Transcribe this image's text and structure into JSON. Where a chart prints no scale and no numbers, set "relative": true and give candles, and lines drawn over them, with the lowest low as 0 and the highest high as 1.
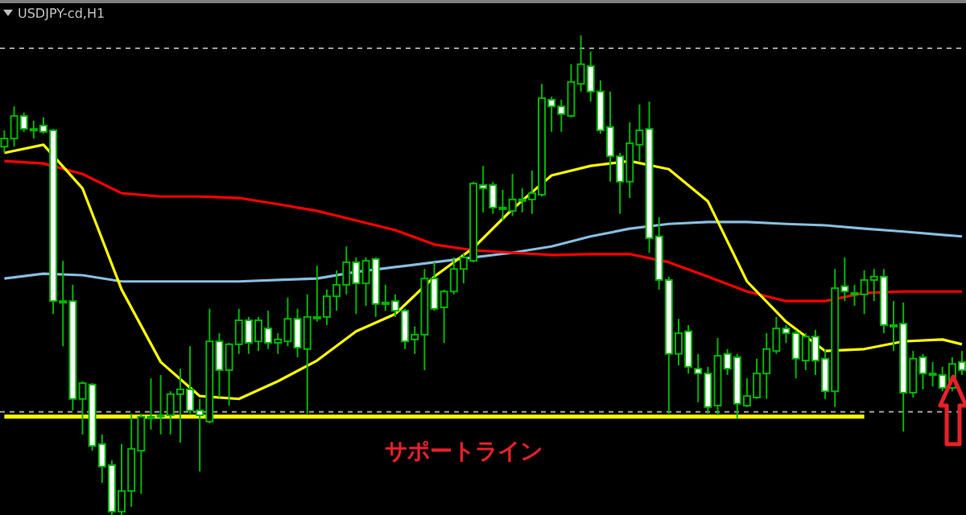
{
  "chart_data": {
    "type": "candlestick",
    "title": "USDJPY-cd,H1",
    "relative": true,
    "categories": [
      null,
      null,
      null,
      null,
      null,
      null,
      null,
      null,
      null,
      null,
      null,
      null,
      null,
      null,
      null,
      null,
      null,
      null,
      null,
      null,
      null,
      null,
      null,
      null,
      null,
      null,
      null,
      null,
      null,
      null,
      null,
      null,
      null,
      null,
      null,
      null,
      null,
      null,
      null,
      null,
      null,
      null,
      null,
      null,
      null,
      null,
      null,
      null,
      null,
      null,
      null,
      null,
      null,
      null,
      null,
      null,
      null,
      null,
      null,
      null,
      null,
      null,
      null,
      null,
      null,
      null,
      null,
      null,
      null,
      null,
      null,
      null,
      null,
      null,
      null,
      null,
      null,
      null,
      null,
      null,
      null,
      null,
      null,
      null,
      null,
      null,
      null,
      null,
      null,
      null,
      null,
      null,
      null,
      null,
      null,
      null,
      null,
      null,
      null
    ],
    "ohlc": [
      [
        0.768,
        0.802,
        0.755,
        0.785
      ],
      [
        0.785,
        0.852,
        0.768,
        0.832
      ],
      [
        0.832,
        0.839,
        0.799,
        0.805
      ],
      [
        0.805,
        0.822,
        0.785,
        0.805
      ],
      [
        0.812,
        0.829,
        0.795,
        0.799
      ],
      [
        0.802,
        0.805,
        0.419,
        0.446
      ],
      [
        0.446,
        0.53,
        0.352,
        0.446
      ],
      [
        0.446,
        0.48,
        0.218,
        0.242
      ],
      [
        0.242,
        0.279,
        0.168,
        0.275
      ],
      [
        0.272,
        0.275,
        0.134,
        0.144
      ],
      [
        0.148,
        0.168,
        0.067,
        0.101
      ],
      [
        0.104,
        0.114,
        0,
        0.007
      ],
      [
        0.007,
        0.148,
        0,
        0.05
      ],
      [
        0.05,
        0.211,
        0.017,
        0.138
      ],
      [
        0.134,
        0.211,
        0.044,
        0.205
      ],
      [
        0.205,
        0.285,
        0.178,
        0.205
      ],
      [
        0.208,
        0.292,
        0.168,
        0.208
      ],
      [
        0.208,
        0.258,
        0.168,
        0.252
      ],
      [
        0.252,
        0.305,
        0.151,
        0.262
      ],
      [
        0.262,
        0.352,
        0.211,
        0.218
      ],
      [
        0.218,
        0.242,
        0.091,
        0.208
      ],
      [
        0.195,
        0.43,
        0.191,
        0.362
      ],
      [
        0.362,
        0.379,
        0.245,
        0.302
      ],
      [
        0.302,
        0.359,
        0.228,
        0.356
      ],
      [
        0.356,
        0.43,
        0.336,
        0.406
      ],
      [
        0.406,
        0.413,
        0.336,
        0.359
      ],
      [
        0.362,
        0.413,
        0.342,
        0.406
      ],
      [
        0.389,
        0.426,
        0.346,
        0.359
      ],
      [
        0.359,
        0.379,
        0.336,
        0.366
      ],
      [
        0.362,
        0.453,
        0.352,
        0.409
      ],
      [
        0.409,
        0.43,
        0.329,
        0.349
      ],
      [
        0.346,
        0.46,
        0.211,
        0.413
      ],
      [
        0.413,
        0.52,
        0.403,
        0.413
      ],
      [
        0.413,
        0.47,
        0.396,
        0.456
      ],
      [
        0.456,
        0.51,
        0.426,
        0.48
      ],
      [
        0.48,
        0.56,
        0.46,
        0.527
      ],
      [
        0.527,
        0.537,
        0.419,
        0.483
      ],
      [
        0.483,
        0.537,
        0.436,
        0.53
      ],
      [
        0.534,
        0.537,
        0.413,
        0.44
      ],
      [
        0.443,
        0.48,
        0.426,
        0.443
      ],
      [
        0.446,
        0.46,
        0.413,
        0.426
      ],
      [
        0.426,
        0.43,
        0.346,
        0.362
      ],
      [
        0.366,
        0.393,
        0.336,
        0.376
      ],
      [
        0.376,
        0.513,
        0.302,
        0.493
      ],
      [
        0.493,
        0.527,
        0.426,
        0.43
      ],
      [
        0.433,
        0.47,
        0.359,
        0.466
      ],
      [
        0.466,
        0.537,
        0.46,
        0.513
      ],
      [
        0.513,
        0.544,
        0.483,
        0.537
      ],
      [
        0.53,
        0.695,
        0.527,
        0.691
      ],
      [
        0.688,
        0.728,
        0.631,
        0.681
      ],
      [
        0.688,
        0.695,
        0.628,
        0.641
      ],
      [
        0.641,
        0.678,
        0.614,
        0.641
      ],
      [
        0.634,
        0.711,
        0.624,
        0.658
      ],
      [
        0.658,
        0.681,
        0.631,
        0.658
      ],
      [
        0.658,
        0.718,
        0.628,
        0.671
      ],
      [
        0.668,
        0.899,
        0.664,
        0.869
      ],
      [
        0.866,
        0.872,
        0.799,
        0.852
      ],
      [
        0.852,
        0.866,
        0.799,
        0.836
      ],
      [
        0.832,
        0.94,
        0.829,
        0.903
      ],
      [
        0.899,
        1.0,
        0.883,
        0.94
      ],
      [
        0.936,
        0.966,
        0.862,
        0.883
      ],
      [
        0.883,
        0.906,
        0.795,
        0.802
      ],
      [
        0.809,
        0.883,
        0.695,
        0.748
      ],
      [
        0.748,
        0.755,
        0.628,
        0.695
      ],
      [
        0.695,
        0.819,
        0.661,
        0.775
      ],
      [
        0.772,
        0.856,
        0.738,
        0.802
      ],
      [
        0.805,
        0.862,
        0.547,
        0.577
      ],
      [
        0.581,
        0.621,
        0.47,
        0.49
      ],
      [
        0.49,
        0.497,
        0.211,
        0.336
      ],
      [
        0.336,
        0.409,
        0.312,
        0.379
      ],
      [
        0.383,
        0.396,
        0.295,
        0.309
      ],
      [
        0.305,
        0.336,
        0.235,
        0.295
      ],
      [
        0.295,
        0.309,
        0.211,
        0.225
      ],
      [
        0.228,
        0.369,
        0.208,
        0.332
      ],
      [
        0.336,
        0.346,
        0.292,
        0.305
      ],
      [
        0.329,
        0.336,
        0.201,
        0.232
      ],
      [
        0.228,
        0.285,
        0.225,
        0.248
      ],
      [
        0.245,
        0.326,
        0.242,
        0.295
      ],
      [
        0.295,
        0.379,
        0.242,
        0.346
      ],
      [
        0.342,
        0.413,
        0.336,
        0.389
      ],
      [
        0.389,
        0.396,
        0.359,
        0.379
      ],
      [
        0.379,
        0.386,
        0.285,
        0.326
      ],
      [
        0.322,
        0.379,
        0.302,
        0.372
      ],
      [
        0.372,
        0.386,
        0.292,
        0.322
      ],
      [
        0.326,
        0.346,
        0.242,
        0.258
      ],
      [
        0.258,
        0.513,
        0.225,
        0.473
      ],
      [
        0.477,
        0.537,
        0.446,
        0.466
      ],
      [
        0.463,
        0.48,
        0.436,
        0.463
      ],
      [
        0.46,
        0.51,
        0.419,
        0.49
      ],
      [
        0.49,
        0.513,
        0.446,
        0.497
      ],
      [
        0.497,
        0.513,
        0.379,
        0.396
      ],
      [
        0.396,
        0.446,
        0.342,
        0.396
      ],
      [
        0.399,
        0.443,
        0.174,
        0.255
      ],
      [
        0.255,
        0.342,
        0.245,
        0.326
      ],
      [
        0.329,
        0.336,
        0.262,
        0.295
      ],
      [
        0.295,
        0.319,
        0.268,
        0.292
      ],
      [
        0.292,
        0.309,
        0.258,
        0.265
      ],
      [
        0.265,
        0.329,
        0.258,
        0.315
      ],
      [
        0.319,
        0.342,
        0.292,
        0.302
      ]
    ],
    "series": [
      {
        "type": "line",
        "color": "#87bde0",
        "values": [
          0.493,
          null,
          null,
          null,
          0.503,
          null,
          null,
          null,
          0.5,
          null,
          null,
          null,
          0.487,
          null,
          null,
          null,
          0.487,
          null,
          null,
          null,
          0.487,
          null,
          null,
          null,
          0.487,
          null,
          null,
          null,
          0.49,
          null,
          null,
          null,
          0.493,
          null,
          null,
          null,
          0.507,
          null,
          null,
          null,
          0.517,
          null,
          null,
          null,
          0.527,
          null,
          null,
          null,
          0.537,
          null,
          null,
          null,
          0.547,
          null,
          null,
          null,
          0.56,
          null,
          null,
          null,
          0.581,
          null,
          null,
          null,
          0.597,
          null,
          null,
          null,
          0.607,
          null,
          null,
          null,
          0.611,
          null,
          null,
          null,
          0.611,
          null,
          null,
          null,
          0.607,
          null,
          null,
          null,
          0.604,
          null,
          null,
          null,
          0.597,
          null,
          null,
          null,
          0.591,
          null,
          null,
          null,
          0.584,
          null,
          0.581
        ]
      },
      {
        "type": "line",
        "color": "#ff0000",
        "values": [
          0.738,
          null,
          null,
          null,
          0.733,
          null,
          null,
          null,
          0.711,
          null,
          null,
          null,
          0.671,
          null,
          null,
          null,
          0.664,
          null,
          null,
          null,
          0.664,
          null,
          null,
          null,
          0.661,
          null,
          null,
          null,
          0.648,
          null,
          null,
          null,
          0.634,
          null,
          null,
          null,
          0.614,
          null,
          null,
          null,
          0.594,
          null,
          null,
          null,
          0.564,
          null,
          null,
          null,
          0.552,
          null,
          null,
          null,
          0.547,
          null,
          null,
          null,
          0.542,
          null,
          null,
          null,
          0.544,
          null,
          null,
          null,
          0.544,
          null,
          null,
          null,
          0.527,
          null,
          null,
          null,
          0.497,
          null,
          null,
          null,
          0.466,
          null,
          null,
          null,
          0.446,
          null,
          null,
          null,
          0.446,
          null,
          null,
          null,
          0.463,
          null,
          null,
          null,
          0.466,
          null,
          null,
          null,
          0.466,
          null,
          0.466
        ]
      },
      {
        "type": "line",
        "color": "#ffff00",
        "values": [
          0.755,
          null,
          null,
          null,
          0.772,
          null,
          null,
          null,
          0.681,
          null,
          null,
          null,
          0.47,
          null,
          null,
          null,
          0.319,
          null,
          null,
          null,
          0.248,
          null,
          null,
          null,
          0.242,
          null,
          null,
          null,
          0.279,
          null,
          null,
          null,
          0.322,
          null,
          null,
          null,
          0.383,
          null,
          null,
          null,
          0.419,
          null,
          null,
          null,
          0.497,
          null,
          null,
          null,
          0.557,
          null,
          null,
          null,
          0.638,
          null,
          null,
          null,
          0.708,
          null,
          null,
          null,
          0.728,
          null,
          null,
          null,
          0.738,
          null,
          null,
          null,
          0.721,
          null,
          null,
          null,
          0.654,
          null,
          null,
          null,
          0.487,
          null,
          null,
          null,
          0.403,
          null,
          null,
          null,
          0.342,
          null,
          null,
          null,
          0.346,
          null,
          null,
          null,
          0.362,
          null,
          null,
          null,
          0.366,
          null,
          0.356
        ]
      }
    ],
    "ref_lines": [
      {
        "axis": "y",
        "value": 0.973,
        "color": "#a0a0a0",
        "line_style": "dashed"
      },
      {
        "axis": "y",
        "value": 0.215,
        "color": "#a0a0a0",
        "line_style": "dashed"
      },
      {
        "axis": "y",
        "value": 0.205,
        "color": "#ffff00",
        "line_style": "solid",
        "label": "サポートライン"
      }
    ]
  }
}
